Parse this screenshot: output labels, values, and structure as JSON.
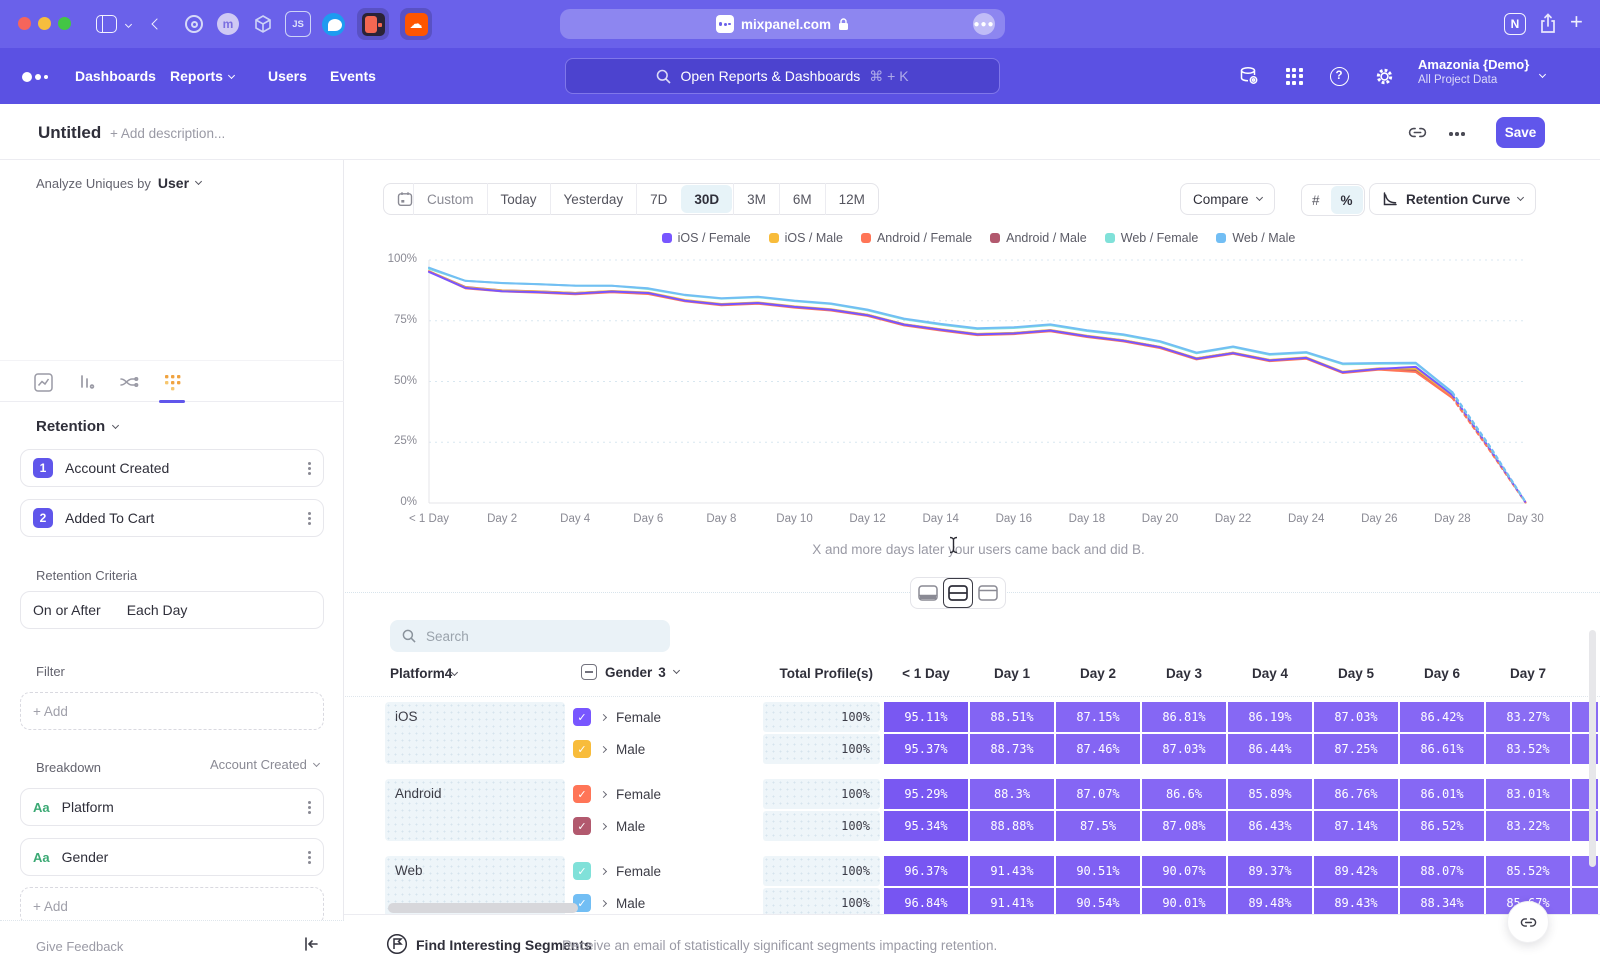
{
  "browser": {
    "url": "mixpanel.com",
    "icons": [
      "sidebar-toggle",
      "back",
      "ring-ext",
      "m-ext",
      "cube-ext",
      "js-ext",
      "globe-ext",
      "red-tile-ext",
      "soundcloud-ext",
      "notion",
      "share",
      "new-tab"
    ]
  },
  "icons": {
    "help": "?",
    "plus": "+",
    "notion": "N",
    "js": "JS",
    "m_ext": "m",
    "cloud": "☁",
    "check": "✓"
  },
  "nav": {
    "links": [
      {
        "label": "Dashboards"
      },
      {
        "label": "Reports",
        "dropdown": true
      },
      {
        "label": "Users"
      },
      {
        "label": "Events"
      }
    ],
    "search_placeholder": "Open Reports & Dashboards",
    "search_shortcut": "⌘ + K",
    "project_name": "Amazonia {Demo}",
    "project_scope": "All Project Data"
  },
  "report_header": {
    "title": "Untitled",
    "description_placeholder": "+ Add description...",
    "save_label": "Save"
  },
  "sidebar": {
    "analyze_label": "Analyze Uniques by",
    "analyze_entity": "User",
    "section_title": "Retention",
    "steps": [
      {
        "num": "1",
        "label": "Account Created"
      },
      {
        "num": "2",
        "label": "Added To Cart"
      }
    ],
    "criteria_label": "Retention Criteria",
    "criteria_left": "On or After",
    "criteria_right": "Each Day",
    "filter_label": "Filter",
    "add_label": "+ Add",
    "breakdown_label": "Breakdown",
    "breakdown_scope": "Account Created",
    "breakdowns": [
      {
        "type_badge": "Aa",
        "label": "Platform"
      },
      {
        "type_badge": "Aa",
        "label": "Gender"
      }
    ],
    "give_feedback": "Give Feedback"
  },
  "toolbar": {
    "ranges": [
      "Custom",
      "Today",
      "Yesterday",
      "7D",
      "30D",
      "3M",
      "6M",
      "12M"
    ],
    "selected_range": "30D",
    "compare_label": "Compare",
    "units": [
      "#",
      "%"
    ],
    "selected_unit": "%",
    "chart_type_label": "Retention Curve"
  },
  "chart_data": {
    "type": "line",
    "title": "",
    "xlabel": "",
    "ylabel": "",
    "ylim": [
      0,
      100
    ],
    "grid": true,
    "legend_position": "top",
    "caption": "X and more days later your users came back and did B.",
    "ytick_labels": [
      "100%",
      "75%",
      "50%",
      "25%",
      "0%"
    ],
    "ytick_values": [
      100,
      75,
      50,
      25,
      0
    ],
    "dashed_from_day": 28,
    "categories": [
      "< 1 Day",
      "Day 1",
      "Day 2",
      "Day 3",
      "Day 4",
      "Day 5",
      "Day 6",
      "Day 7",
      "Day 8",
      "Day 9",
      "Day 10",
      "Day 11",
      "Day 12",
      "Day 13",
      "Day 14",
      "Day 15",
      "Day 16",
      "Day 17",
      "Day 18",
      "Day 19",
      "Day 20",
      "Day 21",
      "Day 22",
      "Day 23",
      "Day 24",
      "Day 25",
      "Day 26",
      "Day 27",
      "Day 28",
      "Day 29",
      "Day 30"
    ],
    "draw_order": [
      3,
      1,
      2,
      0,
      4,
      5
    ],
    "series": [
      {
        "name": "iOS / Female",
        "color": "#7856FF",
        "values": [
          95.11,
          88.51,
          87.15,
          86.81,
          86.19,
          87.03,
          86.42,
          83.27,
          81.7,
          82.3,
          80.7,
          79.5,
          77.3,
          73.4,
          71.3,
          69.4,
          69.8,
          71.0,
          68.6,
          66.8,
          64.1,
          59.4,
          61.7,
          58.7,
          59.7,
          53.8,
          55.2,
          56.0,
          44.4,
          22.9,
          0.3
        ]
      },
      {
        "name": "iOS / Male",
        "color": "#F8BC3B",
        "values": [
          95.37,
          88.73,
          87.46,
          87.03,
          86.44,
          87.25,
          86.61,
          83.52,
          81.9,
          82.5,
          80.9,
          79.7,
          77.5,
          73.6,
          71.5,
          69.6,
          70.0,
          71.2,
          68.8,
          67.0,
          64.3,
          59.6,
          61.9,
          58.9,
          59.9,
          54.0,
          55.4,
          55.3,
          44.0,
          22.6,
          0.3
        ]
      },
      {
        "name": "Android / Female",
        "color": "#FF7557",
        "values": [
          95.29,
          88.3,
          87.07,
          86.6,
          85.89,
          86.76,
          86.01,
          83.01,
          81.4,
          82.0,
          80.4,
          79.2,
          77.0,
          73.1,
          71.0,
          69.1,
          69.5,
          70.7,
          68.3,
          66.5,
          63.8,
          59.1,
          61.4,
          58.4,
          59.4,
          53.5,
          54.9,
          53.9,
          43.2,
          22.1,
          0.2
        ]
      },
      {
        "name": "Android / Male",
        "color": "#B2596E",
        "values": [
          95.34,
          88.88,
          87.5,
          87.08,
          86.43,
          87.14,
          86.52,
          83.22,
          81.8,
          82.4,
          80.8,
          79.6,
          77.4,
          73.5,
          71.4,
          69.5,
          69.9,
          71.1,
          68.7,
          66.9,
          64.2,
          59.5,
          61.8,
          58.8,
          59.8,
          53.9,
          55.3,
          54.6,
          43.7,
          22.4,
          0.3
        ]
      },
      {
        "name": "Web / Female",
        "color": "#80E1D9",
        "values": [
          96.37,
          91.43,
          90.51,
          90.07,
          89.37,
          89.42,
          88.07,
          85.52,
          84.1,
          84.7,
          83.1,
          81.9,
          79.3,
          75.6,
          73.4,
          71.6,
          72.0,
          73.2,
          70.8,
          69.1,
          66.3,
          61.6,
          64.1,
          61.0,
          61.8,
          57.1,
          57.3,
          57.4,
          45.3,
          23.6,
          0.4
        ]
      },
      {
        "name": "Web / Male",
        "color": "#72BEF4",
        "values": [
          96.84,
          91.41,
          90.54,
          90.01,
          89.48,
          89.43,
          88.34,
          85.67,
          84.3,
          84.9,
          83.3,
          82.1,
          79.6,
          75.9,
          73.7,
          71.9,
          72.3,
          73.5,
          71.1,
          69.4,
          66.6,
          61.9,
          64.4,
          61.3,
          62.1,
          57.4,
          57.6,
          57.7,
          45.6,
          24.0,
          0.5
        ]
      }
    ]
  },
  "table": {
    "search_placeholder": "Search",
    "col_platform": {
      "label": "Platform",
      "count": "4"
    },
    "col_gender": {
      "label": "Gender",
      "count": "3"
    },
    "total_header": "Total Profile(s)",
    "day_headers": [
      "< 1 Day",
      "Day 1",
      "Day 2",
      "Day 3",
      "Day 4",
      "Day 5",
      "Day 6",
      "Day 7"
    ],
    "groups": [
      {
        "platform": "iOS",
        "rows": [
          {
            "gender": "Female",
            "checkbox_color": "#7856FF",
            "total": "100%",
            "values": [
              "95.11%",
              "88.51%",
              "87.15%",
              "86.81%",
              "86.19%",
              "87.03%",
              "86.42%",
              "83.27%"
            ]
          },
          {
            "gender": "Male",
            "checkbox_color": "#F8BC3B",
            "total": "100%",
            "values": [
              "95.37%",
              "88.73%",
              "87.46%",
              "87.03%",
              "86.44%",
              "87.25%",
              "86.61%",
              "83.52%"
            ]
          }
        ]
      },
      {
        "platform": "Android",
        "rows": [
          {
            "gender": "Female",
            "checkbox_color": "#FF7557",
            "total": "100%",
            "values": [
              "95.29%",
              "88.3%",
              "87.07%",
              "86.6%",
              "85.89%",
              "86.76%",
              "86.01%",
              "83.01%"
            ]
          },
          {
            "gender": "Male",
            "checkbox_color": "#B2596E",
            "total": "100%",
            "values": [
              "95.34%",
              "88.88%",
              "87.5%",
              "87.08%",
              "86.43%",
              "87.14%",
              "86.52%",
              "83.22%"
            ]
          }
        ]
      },
      {
        "platform": "Web",
        "rows": [
          {
            "gender": "Female",
            "checkbox_color": "#80E1D9",
            "total": "100%",
            "values": [
              "96.37%",
              "91.43%",
              "90.51%",
              "90.07%",
              "89.37%",
              "89.42%",
              "88.07%",
              "85.52%"
            ]
          },
          {
            "gender": "Male",
            "checkbox_color": "#72BEF4",
            "total": "100%",
            "values": [
              "96.84%",
              "91.41%",
              "90.54%",
              "90.01%",
              "89.48%",
              "89.43%",
              "88.34%",
              "85.67%"
            ]
          }
        ]
      }
    ]
  },
  "footer": {
    "title": "Find Interesting Segments",
    "description": "Receive an email of statistically significant segments impacting retention."
  }
}
